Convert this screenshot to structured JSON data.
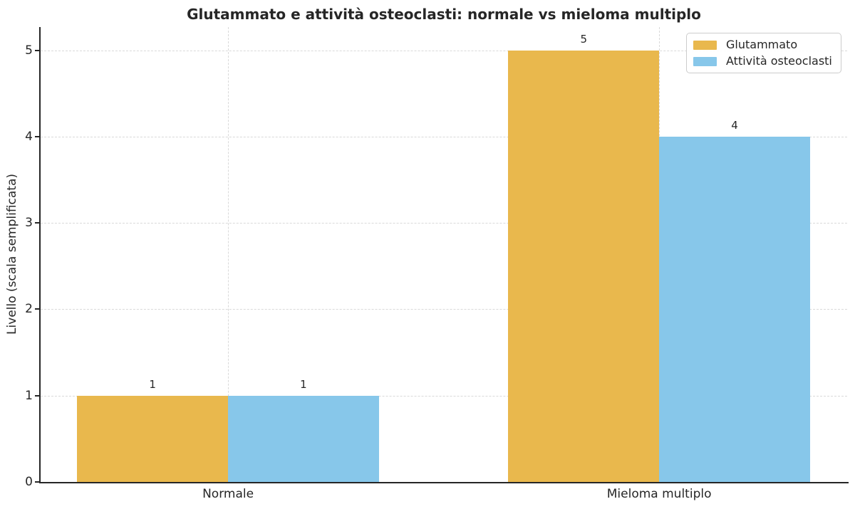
{
  "figure": {
    "background": "#ffffff"
  },
  "colors": {
    "text": "#262626",
    "spine": "#262626",
    "grid": "#d9d9d9",
    "legend_border": "#cccccc"
  },
  "chart_data": {
    "type": "bar",
    "title": "Glutammato e attività osteoclasti: normale vs mieloma multiplo",
    "xlabel": "",
    "ylabel": "Livello (scala semplificata)",
    "categories": [
      "Normale",
      "Mieloma multiplo"
    ],
    "series": [
      {
        "name": "Glutammato",
        "color": "#e9b84d",
        "values": [
          1,
          5
        ]
      },
      {
        "name": "Attività osteoclasti",
        "color": "#87c7ea",
        "values": [
          1,
          4
        ]
      }
    ],
    "bar_value_labels": [
      [
        "1",
        "5"
      ],
      [
        "1",
        "4"
      ]
    ],
    "yticks": [
      0,
      1,
      2,
      3,
      4,
      5
    ],
    "ylim": [
      0,
      5.27
    ],
    "bar_width_axis_units": 0.35,
    "grid": {
      "visible": true,
      "style": "dashed",
      "axes": "both"
    },
    "legend": {
      "position": "upper right"
    }
  }
}
